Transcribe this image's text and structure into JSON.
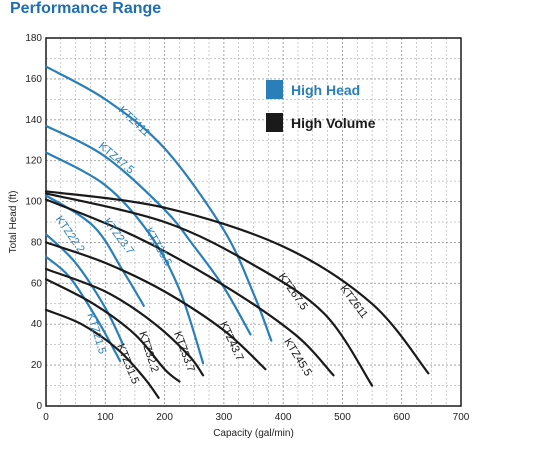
{
  "page": {
    "title": "Performance Range"
  },
  "colors": {
    "high_head": "#2a7fb8",
    "high_volume": "#1a1a1a",
    "title": "#1f6fb0",
    "grid": "#9a9a9a"
  },
  "chart_data": {
    "type": "line",
    "title": "",
    "xlabel": "Capacity (gal/min)",
    "ylabel": "Total Head (ft)",
    "xlim": [
      0,
      700
    ],
    "ylim": [
      0,
      180
    ],
    "xticks": [
      0,
      100,
      200,
      300,
      400,
      500,
      600,
      700
    ],
    "yticks": [
      0,
      20,
      40,
      60,
      80,
      100,
      120,
      140,
      160,
      180
    ],
    "grid": true,
    "legend": {
      "placement": "top-right",
      "entries": [
        {
          "label": "High Head",
          "group": "high_head"
        },
        {
          "label": "High Volume",
          "group": "high_volume"
        }
      ]
    },
    "series": [
      {
        "name": "KTZ411",
        "group": "high_head",
        "x": [
          0,
          100,
          200,
          300,
          350,
          380
        ],
        "y": [
          166,
          150,
          126,
          86,
          55,
          32
        ]
      },
      {
        "name": "KTZ47.5",
        "group": "high_head",
        "x": [
          0,
          100,
          200,
          250,
          300,
          345
        ],
        "y": [
          137,
          122,
          96,
          78,
          58,
          35
        ]
      },
      {
        "name": "KTZ35.5",
        "group": "high_head",
        "x": [
          0,
          100,
          175,
          225,
          265
        ],
        "y": [
          124,
          108,
          84,
          57,
          21
        ]
      },
      {
        "name": "KTZ23.7",
        "group": "high_head",
        "x": [
          0,
          80,
          130,
          165
        ],
        "y": [
          103,
          88,
          66,
          49
        ]
      },
      {
        "name": "KTZ22.2",
        "group": "high_head",
        "x": [
          0,
          50,
          100,
          130
        ],
        "y": [
          84,
          70,
          48,
          30
        ]
      },
      {
        "name": "KTZ21.5",
        "group": "high_head",
        "x": [
          0,
          40,
          85,
          125
        ],
        "y": [
          73,
          63,
          43,
          22
        ]
      },
      {
        "name": "KTZ611",
        "group": "high_volume",
        "x": [
          0,
          200,
          400,
          550,
          645
        ],
        "y": [
          105,
          97,
          78,
          50,
          16
        ]
      },
      {
        "name": "KTZ67.5",
        "group": "high_volume",
        "x": [
          0,
          200,
          350,
          470,
          550
        ],
        "y": [
          104,
          90,
          69,
          45,
          10
        ]
      },
      {
        "name": "KTZ45.5",
        "group": "high_volume",
        "x": [
          0,
          150,
          300,
          420,
          485
        ],
        "y": [
          101,
          83,
          59,
          35,
          15
        ]
      },
      {
        "name": "KTZ43.7",
        "group": "high_volume",
        "x": [
          0,
          100,
          200,
          300,
          370
        ],
        "y": [
          80,
          70,
          56,
          37,
          18
        ]
      },
      {
        "name": "KTZ33.7",
        "group": "high_volume",
        "x": [
          0,
          100,
          180,
          240,
          265
        ],
        "y": [
          67,
          56,
          41,
          25,
          15
        ]
      },
      {
        "name": "KTZ32.2",
        "group": "high_volume",
        "x": [
          0,
          80,
          150,
          200,
          225
        ],
        "y": [
          62,
          50,
          35,
          18,
          12
        ]
      },
      {
        "name": "KTZ31.5",
        "group": "high_volume",
        "x": [
          0,
          60,
          120,
          165,
          190
        ],
        "y": [
          47,
          40,
          28,
          14,
          4
        ]
      }
    ],
    "labels": [
      {
        "text": "KTZ411",
        "series": "KTZ411",
        "at": [
          145,
          138
        ],
        "angle": 43
      },
      {
        "text": "KTZ47.5",
        "series": "KTZ47.5",
        "at": [
          115,
          120
        ],
        "angle": 40
      },
      {
        "text": "KTZ35.5",
        "series": "KTZ35.5",
        "at": [
          185,
          77
        ],
        "angle": 60
      },
      {
        "text": "KTZ23.7",
        "series": "KTZ23.7",
        "at": [
          118,
          82
        ],
        "angle": 53
      },
      {
        "text": "KTZ22.2",
        "series": "KTZ22.2",
        "at": [
          36,
          83
        ],
        "angle": 55
      },
      {
        "text": "KTZ21.5",
        "series": "KTZ21.5",
        "at": [
          80,
          35
        ],
        "angle": 73
      },
      {
        "text": "KTZ611",
        "series": "KTZ611",
        "at": [
          515,
          50
        ],
        "angle": 53
      },
      {
        "text": "KTZ67.5",
        "series": "KTZ67.5",
        "at": [
          412,
          55
        ],
        "angle": 55
      },
      {
        "text": "KTZ45.5",
        "series": "KTZ45.5",
        "at": [
          420,
          23
        ],
        "angle": 58
      },
      {
        "text": "KTZ43.7",
        "series": "KTZ43.7",
        "at": [
          308,
          31
        ],
        "angle": 65
      },
      {
        "text": "KTZ33.7",
        "series": "KTZ33.7",
        "at": [
          228,
          26
        ],
        "angle": 70
      },
      {
        "text": "KTZ32.2",
        "series": "KTZ32.2",
        "at": [
          168,
          26
        ],
        "angle": 72
      },
      {
        "text": "KTZ31.5",
        "series": "KTZ31.5",
        "at": [
          133,
          20
        ],
        "angle": 68
      }
    ]
  }
}
